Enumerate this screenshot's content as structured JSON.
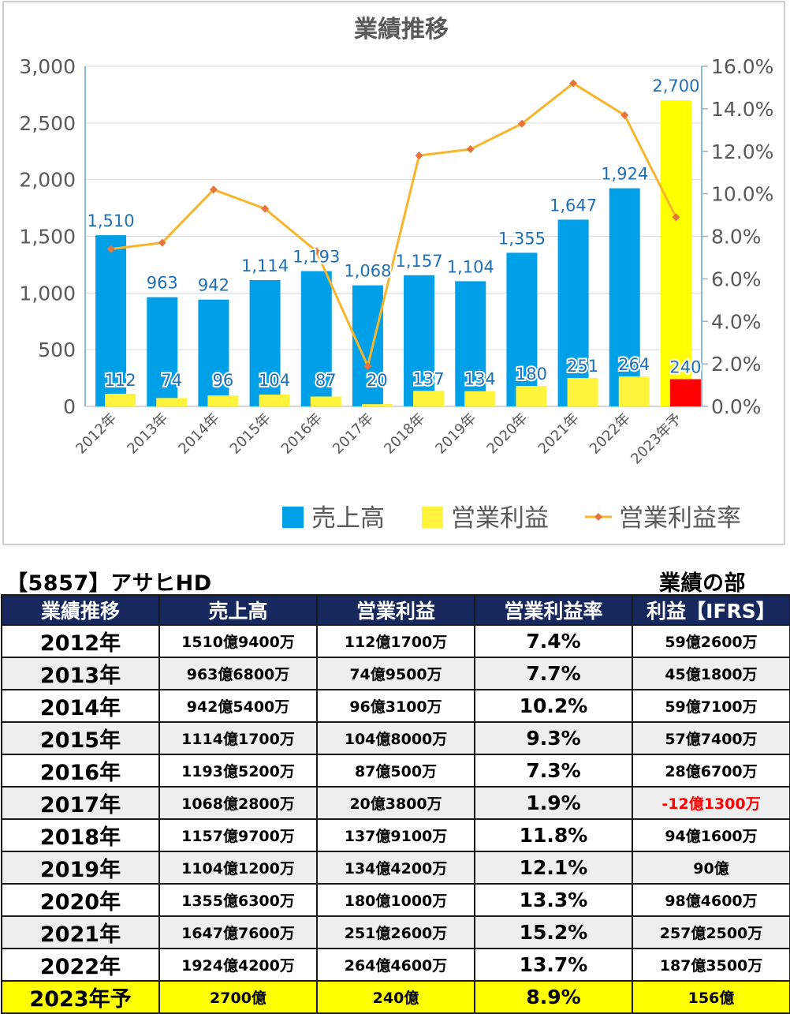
{
  "chart_data": {
    "type": "bar",
    "title": "業績推移",
    "categories": [
      "2012年",
      "2013年",
      "2014年",
      "2015年",
      "2016年",
      "2017年",
      "2018年",
      "2019年",
      "2020年",
      "2021年",
      "2022年",
      "2023年予"
    ],
    "series": [
      {
        "name": "売上高",
        "kind": "bar",
        "axis": "left",
        "color": "#00a0e9",
        "values": [
          1510,
          963,
          942,
          1114,
          1193,
          1068,
          1157,
          1104,
          1355,
          1647,
          1924,
          2700
        ],
        "labels": [
          "1,510",
          "963",
          "942",
          "1,114",
          "1,193",
          "1,068",
          "1,157",
          "1,104",
          "1,355",
          "1,647",
          "1,924",
          "2,700"
        ]
      },
      {
        "name": "営業利益",
        "kind": "bar",
        "axis": "left",
        "color": "#fff33c",
        "values": [
          112,
          74,
          96,
          104,
          87,
          20,
          137,
          134,
          180,
          251,
          264,
          240
        ],
        "labels": [
          "112",
          "74",
          "96",
          "104",
          "87",
          "20",
          "137",
          "134",
          "180",
          "251",
          "264",
          "240"
        ]
      },
      {
        "name": "営業利益率",
        "kind": "line",
        "axis": "right",
        "color": "#f7b52c",
        "values": [
          7.4,
          7.7,
          10.2,
          9.3,
          7.3,
          1.9,
          11.8,
          12.1,
          13.3,
          15.2,
          13.7,
          8.9
        ]
      }
    ],
    "highlight": {
      "index": 11,
      "sales_color": "#ffff00",
      "profit_color": "#ff0000"
    },
    "y_left": {
      "range": [
        0,
        3000
      ],
      "ticks": [
        "0",
        "500",
        "1,000",
        "1,500",
        "2,000",
        "2,500",
        "3,000"
      ]
    },
    "y_right": {
      "range": [
        0,
        16
      ],
      "ticks": [
        "0.0%",
        "2.0%",
        "4.0%",
        "6.0%",
        "8.0%",
        "10.0%",
        "12.0%",
        "14.0%",
        "16.0%"
      ]
    },
    "grid": true,
    "legend_position": "bottom-right"
  },
  "heading": {
    "company": "【5857】アサヒHD",
    "section": "業績の部"
  },
  "table": {
    "headers": [
      "業績推移",
      "売上高",
      "営業利益",
      "営業利益率",
      "利益【IFRS】"
    ],
    "rows": [
      {
        "year": "2012年",
        "sales": "1510億9400万",
        "op": "112億1700万",
        "rate": "7.4%",
        "profit": "59億2600万"
      },
      {
        "year": "2013年",
        "sales": "963億6800万",
        "op": "74億9500万",
        "rate": "7.7%",
        "profit": "45億1800万"
      },
      {
        "year": "2014年",
        "sales": "942億5400万",
        "op": "96億3100万",
        "rate": "10.2%",
        "profit": "59億7100万"
      },
      {
        "year": "2015年",
        "sales": "1114億1700万",
        "op": "104億8000万",
        "rate": "9.3%",
        "profit": "57億7400万"
      },
      {
        "year": "2016年",
        "sales": "1193億5200万",
        "op": "87億500万",
        "rate": "7.3%",
        "profit": "28億6700万"
      },
      {
        "year": "2017年",
        "sales": "1068億2800万",
        "op": "20億3800万",
        "rate": "1.9%",
        "profit": "-12億1300万"
      },
      {
        "year": "2018年",
        "sales": "1157億9700万",
        "op": "137億9100万",
        "rate": "11.8%",
        "profit": "94億1600万"
      },
      {
        "year": "2019年",
        "sales": "1104億1200万",
        "op": "134億4200万",
        "rate": "12.1%",
        "profit": "90億"
      },
      {
        "year": "2020年",
        "sales": "1355億6300万",
        "op": "180億1000万",
        "rate": "13.3%",
        "profit": "98億4600万"
      },
      {
        "year": "2021年",
        "sales": "1647億7600万",
        "op": "251億2600万",
        "rate": "15.2%",
        "profit": "257億2500万"
      },
      {
        "year": "2022年",
        "sales": "1924億4200万",
        "op": "264億4600万",
        "rate": "13.7%",
        "profit": "187億3500万"
      },
      {
        "year": "2023年予",
        "sales": "2700億",
        "op": "240億",
        "rate": "8.9%",
        "profit": "156億"
      }
    ],
    "negative_color": "#ff0000",
    "highlight_color": "#ffff00",
    "header_color": "#16285e"
  }
}
